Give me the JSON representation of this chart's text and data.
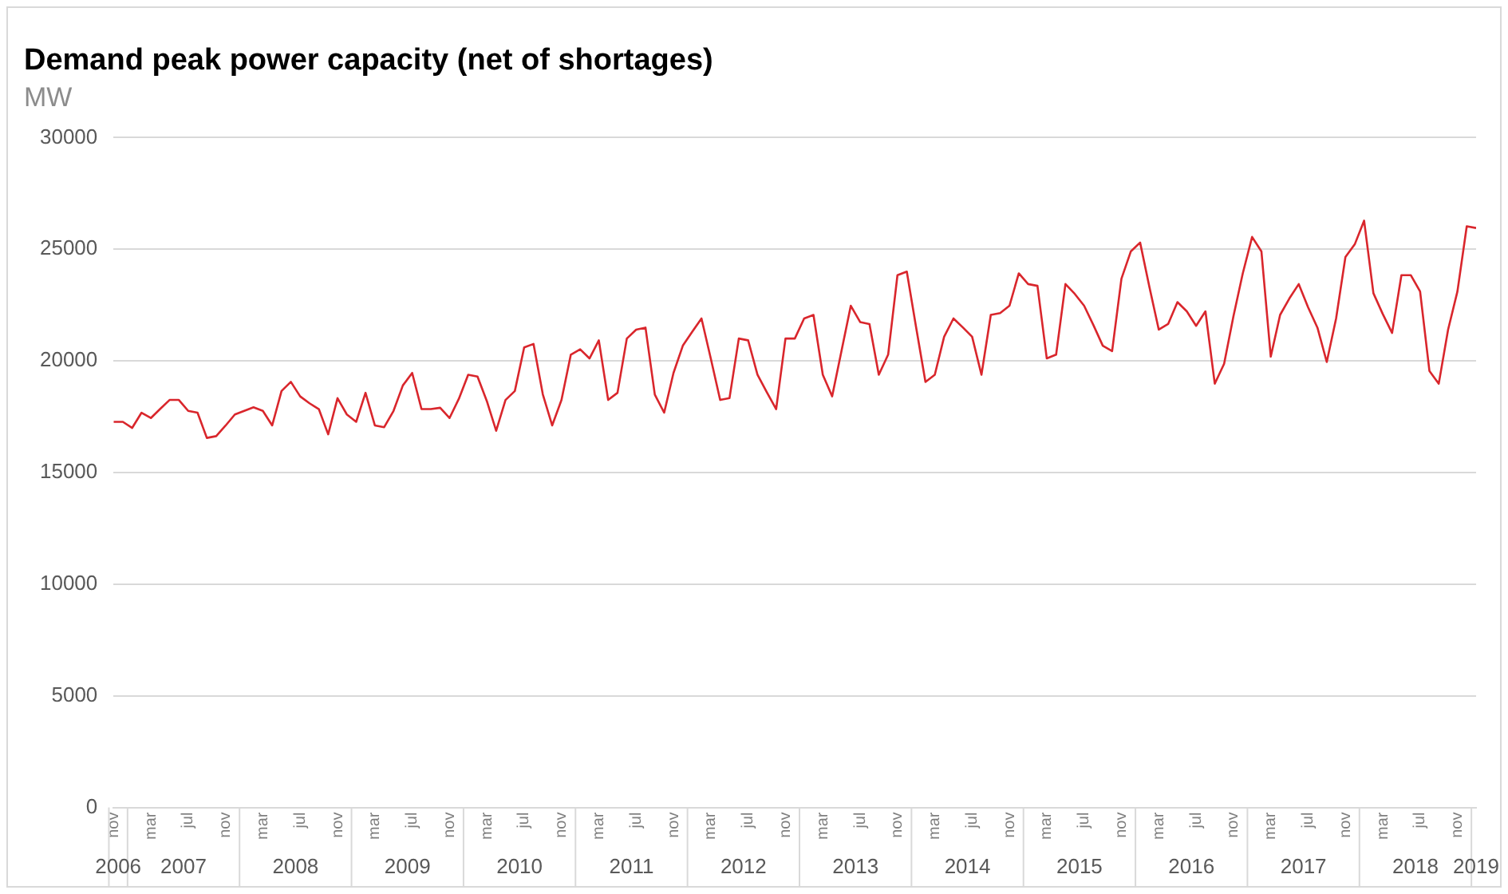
{
  "chart_data": {
    "type": "line",
    "title": "Demand peak power capacity (net of shortages)",
    "subtitle": "MW",
    "x": [
      "2006-11",
      "2006-12",
      "2007-01",
      "2007-02",
      "2007-03",
      "2007-04",
      "2007-05",
      "2007-06",
      "2007-07",
      "2007-08",
      "2007-09",
      "2007-10",
      "2007-11",
      "2007-12",
      "2008-01",
      "2008-02",
      "2008-03",
      "2008-04",
      "2008-05",
      "2008-06",
      "2008-07",
      "2008-08",
      "2008-09",
      "2008-10",
      "2008-11",
      "2008-12",
      "2009-01",
      "2009-02",
      "2009-03",
      "2009-04",
      "2009-05",
      "2009-06",
      "2009-07",
      "2009-08",
      "2009-09",
      "2009-10",
      "2009-11",
      "2009-12",
      "2010-01",
      "2010-02",
      "2010-03",
      "2010-04",
      "2010-05",
      "2010-06",
      "2010-07",
      "2010-08",
      "2010-09",
      "2010-10",
      "2010-11",
      "2010-12",
      "2011-01",
      "2011-02",
      "2011-03",
      "2011-04",
      "2011-05",
      "2011-06",
      "2011-07",
      "2011-08",
      "2011-09",
      "2011-10",
      "2011-11",
      "2011-12",
      "2012-01",
      "2012-02",
      "2012-03",
      "2012-04",
      "2012-05",
      "2012-06",
      "2012-07",
      "2012-08",
      "2012-09",
      "2012-10",
      "2012-11",
      "2012-12",
      "2013-01",
      "2013-02",
      "2013-03",
      "2013-04",
      "2013-05",
      "2013-06",
      "2013-07",
      "2013-08",
      "2013-09",
      "2013-10",
      "2013-11",
      "2013-12",
      "2014-01",
      "2014-02",
      "2014-03",
      "2014-04",
      "2014-05",
      "2014-06",
      "2014-07",
      "2014-08",
      "2014-09",
      "2014-10",
      "2014-11",
      "2014-12",
      "2015-01",
      "2015-02",
      "2015-03",
      "2015-04",
      "2015-05",
      "2015-06",
      "2015-07",
      "2015-08",
      "2015-09",
      "2015-10",
      "2015-11",
      "2015-12",
      "2016-01",
      "2016-02",
      "2016-03",
      "2016-04",
      "2016-05",
      "2016-06",
      "2016-07",
      "2016-08",
      "2016-09",
      "2016-10",
      "2016-11",
      "2016-12",
      "2017-01",
      "2017-02",
      "2017-03",
      "2017-04",
      "2017-05",
      "2017-06",
      "2017-07",
      "2017-08",
      "2017-09",
      "2017-10",
      "2017-11",
      "2017-12",
      "2018-01",
      "2018-02",
      "2018-03",
      "2018-04",
      "2018-05",
      "2018-06",
      "2018-07",
      "2018-08",
      "2018-09",
      "2018-10",
      "2018-11",
      "2018-12",
      "2019-01"
    ],
    "series": [
      {
        "color": "#d9262c",
        "values": [
          17270,
          17270,
          17000,
          17680,
          17440,
          17850,
          18250,
          18250,
          17760,
          17680,
          16550,
          16630,
          17100,
          17600,
          17760,
          17920,
          17760,
          17110,
          18650,
          19060,
          18410,
          18100,
          17840,
          16710,
          18330,
          17600,
          17270,
          18570,
          17110,
          17030,
          17760,
          18900,
          19460,
          17840,
          17840,
          17900,
          17440,
          18300,
          19380,
          19300,
          18200,
          16870,
          18250,
          18650,
          20600,
          20760,
          18500,
          17110,
          18250,
          20280,
          20520,
          20110,
          20920,
          18250,
          18570,
          21000,
          21400,
          21490,
          18490,
          17680,
          19460,
          20680,
          21300,
          21900,
          20100,
          18250,
          18330,
          21000,
          20920,
          19380,
          18600,
          17840,
          21000,
          21000,
          21900,
          22060,
          19380,
          18410,
          20440,
          22470,
          21740,
          21650,
          19380,
          20280,
          23840,
          24000,
          21500,
          19060,
          19380,
          21080,
          21900,
          21500,
          21080,
          19380,
          22060,
          22140,
          22470,
          23920,
          23440,
          23360,
          20110,
          20280,
          23440,
          23000,
          22470,
          21600,
          20680,
          20440,
          23680,
          24900,
          25300,
          23300,
          21400,
          21650,
          22630,
          22220,
          21570,
          22220,
          18980,
          19870,
          22000,
          23920,
          25550,
          24900,
          20190,
          22060,
          22800,
          23440,
          22400,
          21490,
          19950,
          21900,
          24650,
          25220,
          26280,
          23030,
          22100,
          21250,
          23840,
          23840,
          23110,
          19550,
          18980,
          21400,
          23110,
          26030,
          25950
        ]
      }
    ],
    "xlim": [
      "2006-11",
      "2019-01"
    ],
    "xticks": [
      {
        "value": "2006-11",
        "label": "nov"
      },
      {
        "value": "2007-03",
        "label": "mar"
      },
      {
        "value": "2007-07",
        "label": "jul"
      },
      {
        "value": "2007-11",
        "label": "nov"
      },
      {
        "value": "2008-03",
        "label": "mar"
      },
      {
        "value": "2008-07",
        "label": "jul"
      },
      {
        "value": "2008-11",
        "label": "nov"
      },
      {
        "value": "2009-03",
        "label": "mar"
      },
      {
        "value": "2009-07",
        "label": "jul"
      },
      {
        "value": "2009-11",
        "label": "nov"
      },
      {
        "value": "2010-03",
        "label": "mar"
      },
      {
        "value": "2010-07",
        "label": "jul"
      },
      {
        "value": "2010-11",
        "label": "nov"
      },
      {
        "value": "2011-03",
        "label": "mar"
      },
      {
        "value": "2011-07",
        "label": "jul"
      },
      {
        "value": "2011-11",
        "label": "nov"
      },
      {
        "value": "2012-03",
        "label": "mar"
      },
      {
        "value": "2012-07",
        "label": "jul"
      },
      {
        "value": "2012-11",
        "label": "nov"
      },
      {
        "value": "2013-03",
        "label": "mar"
      },
      {
        "value": "2013-07",
        "label": "jul"
      },
      {
        "value": "2013-11",
        "label": "nov"
      },
      {
        "value": "2014-03",
        "label": "mar"
      },
      {
        "value": "2014-07",
        "label": "jul"
      },
      {
        "value": "2014-11",
        "label": "nov"
      },
      {
        "value": "2015-03",
        "label": "mar"
      },
      {
        "value": "2015-07",
        "label": "jul"
      },
      {
        "value": "2015-11",
        "label": "nov"
      },
      {
        "value": "2016-03",
        "label": "mar"
      },
      {
        "value": "2016-07",
        "label": "jul"
      },
      {
        "value": "2016-11",
        "label": "nov"
      },
      {
        "value": "2017-03",
        "label": "mar"
      },
      {
        "value": "2017-07",
        "label": "jul"
      },
      {
        "value": "2017-11",
        "label": "nov"
      },
      {
        "value": "2018-03",
        "label": "mar"
      },
      {
        "value": "2018-07",
        "label": "jul"
      },
      {
        "value": "2018-11",
        "label": "nov"
      }
    ],
    "annotations": [
      "2006",
      "2007",
      "2008",
      "2009",
      "2010",
      "2011",
      "2012",
      "2013",
      "2014",
      "2015",
      "2016",
      "2017",
      "2018",
      "2019"
    ],
    "ylim": [
      0,
      30000
    ],
    "yticks": [
      0,
      5000,
      10000,
      15000,
      20000,
      25000,
      30000
    ],
    "grid": "y",
    "legend": false,
    "marker": "none",
    "line_style": "solid"
  }
}
